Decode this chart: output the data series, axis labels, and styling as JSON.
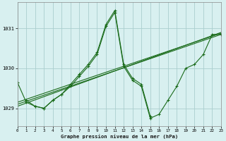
{
  "title": "Graphe pression niveau de la mer (hPa)",
  "bg_color": "#d8f0f0",
  "grid_color": "#aacece",
  "line_color": "#1a6b1a",
  "x_min": 0,
  "x_max": 23,
  "y_min": 1028.55,
  "y_max": 1031.65,
  "yticks": [
    1029,
    1030,
    1031
  ],
  "xticks": [
    0,
    1,
    2,
    3,
    4,
    5,
    6,
    7,
    8,
    9,
    10,
    11,
    12,
    13,
    14,
    15,
    16,
    17,
    18,
    19,
    20,
    21,
    22,
    23
  ],
  "lines": [
    {
      "x": [
        0,
        1,
        2,
        3,
        4,
        5,
        6,
        7,
        8,
        9,
        10,
        11,
        12,
        13,
        14,
        15,
        16,
        17,
        18,
        19,
        20,
        21,
        22,
        23
      ],
      "y": [
        1029.65,
        1029.15,
        1029.05,
        1029.0,
        1029.2,
        1029.35,
        1029.55,
        1029.8,
        1030.05,
        1030.35,
        1031.05,
        1031.4,
        1030.05,
        1029.7,
        1029.55,
        1028.75,
        1028.85,
        1029.2,
        1029.55,
        1030.0,
        1030.1,
        1030.35,
        1030.85,
        1030.85
      ]
    },
    {
      "x": [
        1,
        2,
        3,
        4,
        5,
        6,
        7,
        8,
        9,
        10,
        11,
        12,
        13,
        14,
        15
      ],
      "y": [
        1029.2,
        1029.05,
        1029.0,
        1029.2,
        1029.35,
        1029.6,
        1029.85,
        1030.1,
        1030.4,
        1031.1,
        1031.45,
        1030.1,
        1029.75,
        1029.6,
        1028.8
      ]
    },
    {
      "x": [
        0,
        23
      ],
      "y": [
        1029.05,
        1030.9
      ]
    },
    {
      "x": [
        0,
        23
      ],
      "y": [
        1029.1,
        1030.85
      ]
    },
    {
      "x": [
        0,
        23
      ],
      "y": [
        1029.15,
        1030.88
      ]
    }
  ]
}
